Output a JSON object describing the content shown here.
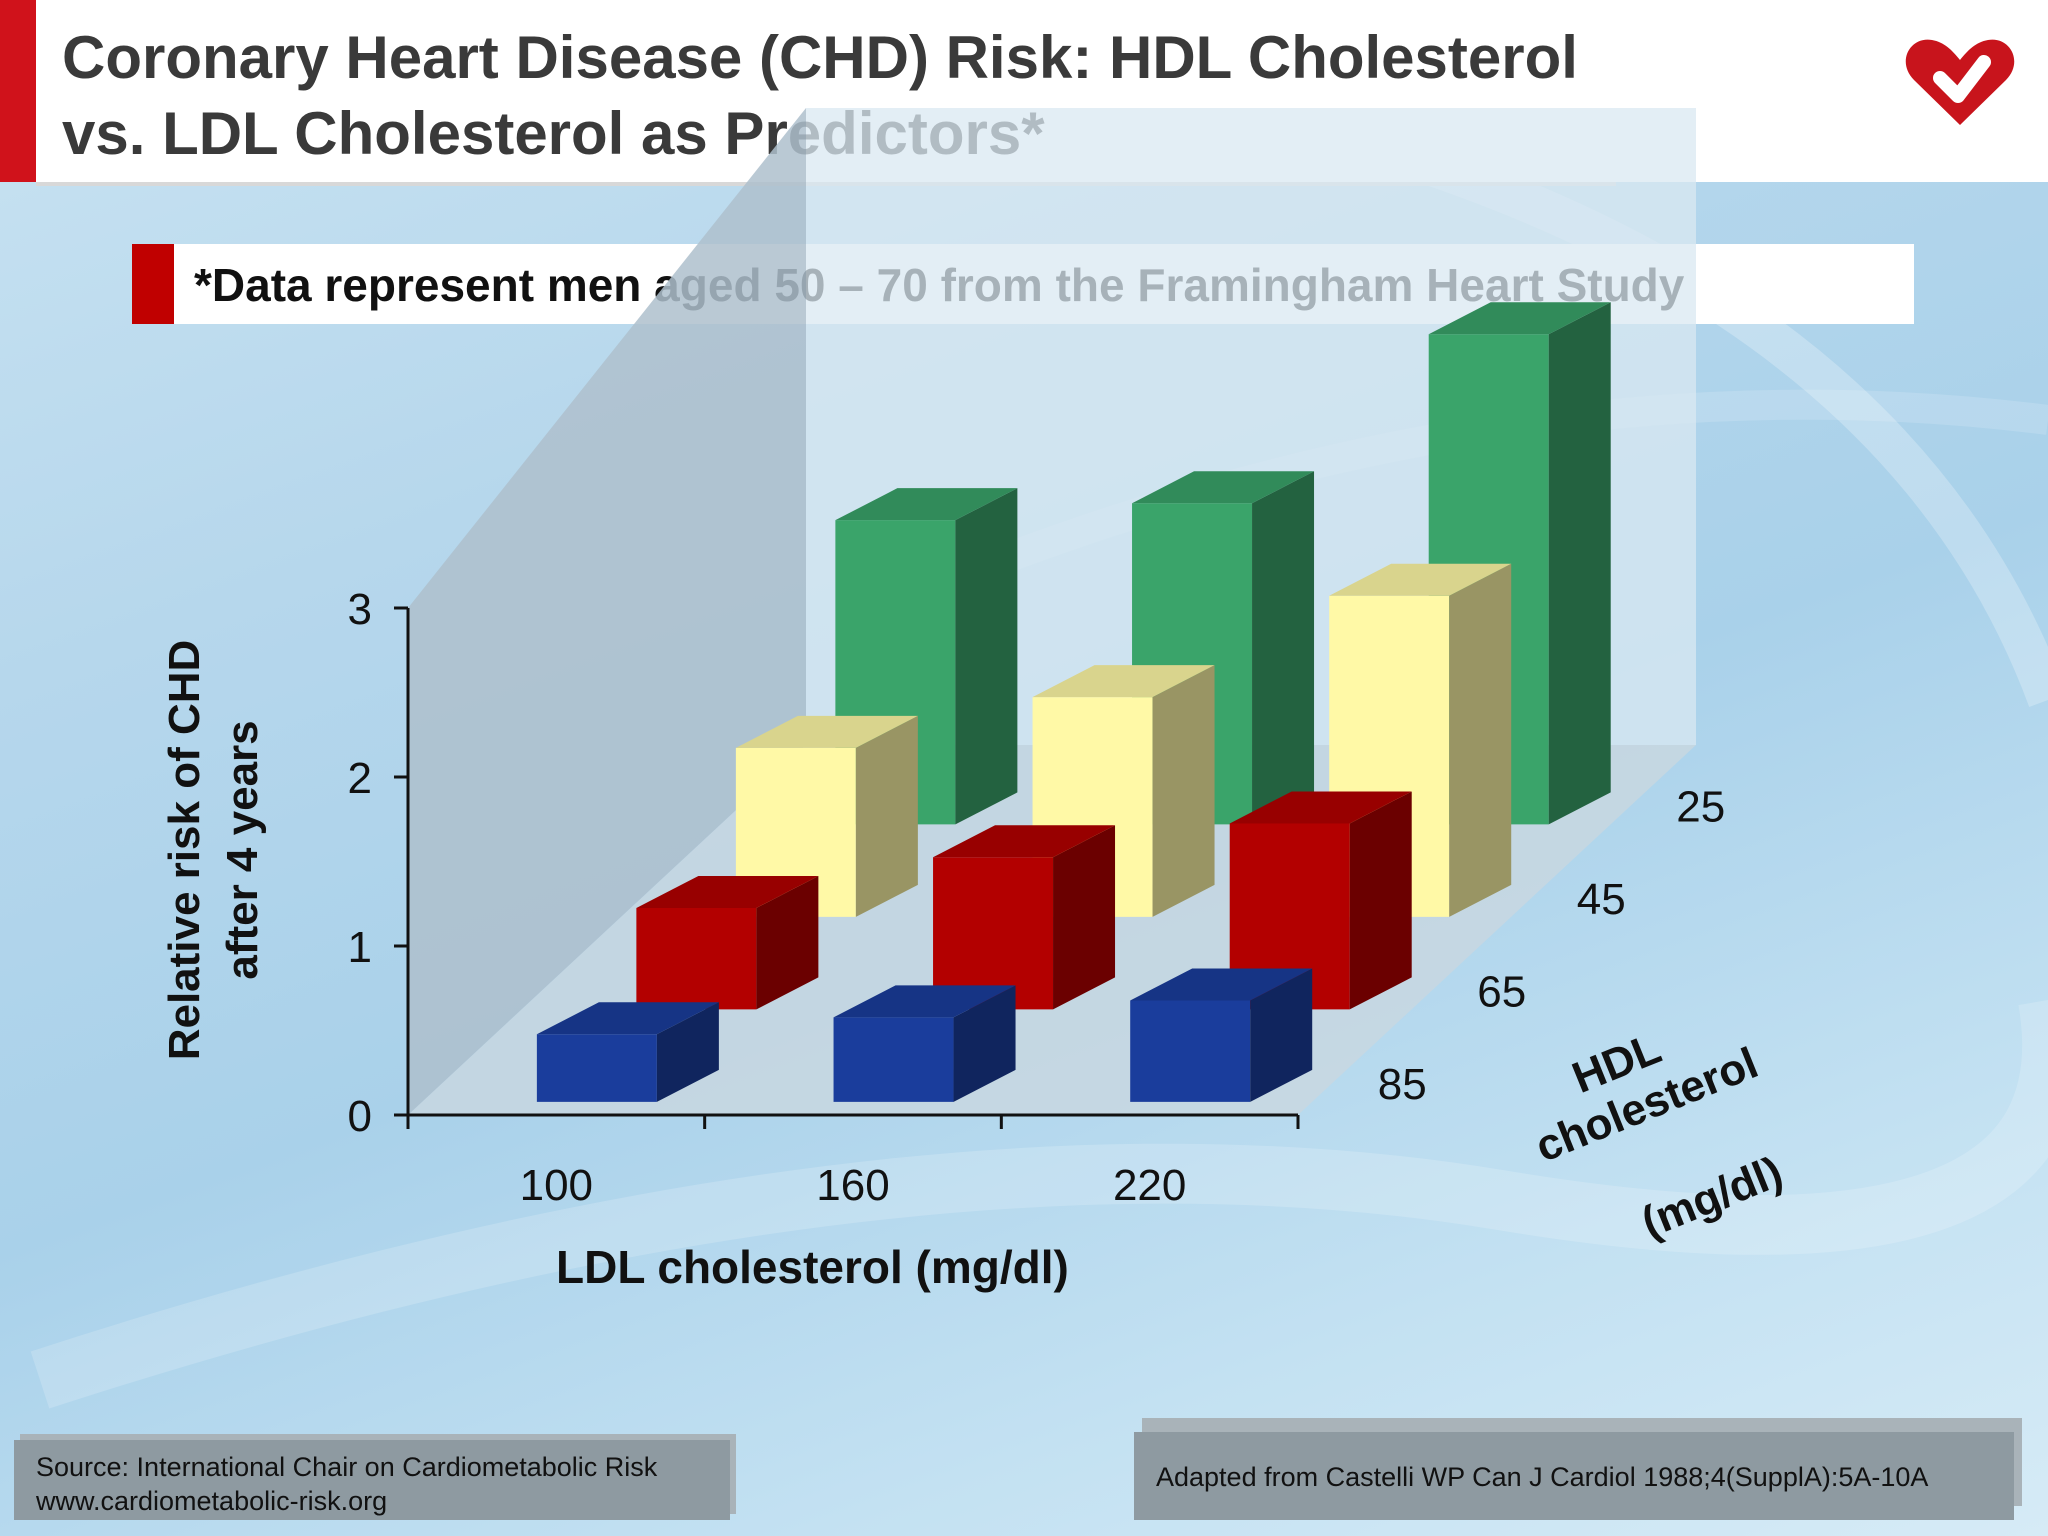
{
  "header": {
    "title_line1": "Coronary Heart Disease (CHD) Risk: HDL Cholesterol",
    "title_line2": "vs. LDL Cholesterol as Predictors*"
  },
  "note": "*Data represent men aged 50 – 70 from the Framingham Heart Study",
  "chart_data": {
    "type": "bar",
    "subtype": "3d-grouped",
    "title": "",
    "ylabel_line1": "Relative risk of CHD",
    "ylabel_line2": "after 4 years",
    "xlabel": "LDL cholesterol (mg/dl)",
    "zlabel_line1": "HDL",
    "zlabel_line2": "cholesterol",
    "zlabel_line3": "(mg/dl)",
    "categories": [
      "100",
      "160",
      "220"
    ],
    "yticks": [
      "0",
      "1",
      "2",
      "3"
    ],
    "ylim": [
      0,
      3
    ],
    "series": [
      {
        "name": "85",
        "color": "#1a3d9c",
        "values": [
          0.4,
          0.5,
          0.6
        ]
      },
      {
        "name": "65",
        "color": "#b30000",
        "values": [
          0.6,
          0.9,
          1.1
        ]
      },
      {
        "name": "45",
        "color": "#fff9a6",
        "values": [
          1.0,
          1.3,
          1.9
        ]
      },
      {
        "name": "25",
        "color": "#3aa46a",
        "values": [
          1.8,
          1.9,
          2.9
        ]
      }
    ]
  },
  "footer": {
    "source_line1": "Source: International Chair on Cardiometabolic Risk",
    "source_line2": "www.cardiometabolic-risk.org",
    "citation": "Adapted from Castelli WP Can J Cardiol 1988;4(SupplA):5A-10A"
  },
  "colors": {
    "accent_red": "#d0121b"
  }
}
